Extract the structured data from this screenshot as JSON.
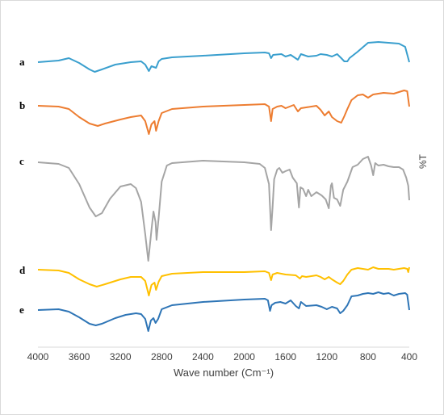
{
  "chart_data": {
    "type": "line",
    "title": "",
    "xlabel": "Wave number (Cm⁻¹)",
    "ylabel": "%T",
    "xlim": [
      4000,
      400
    ],
    "x_reversed": true,
    "x_ticks": [
      "4000",
      "3600",
      "3200",
      "2800",
      "2400",
      "2000",
      "1600",
      "1200",
      "800",
      "400"
    ],
    "y_ticks_shown": false,
    "grid": false,
    "legend": "none",
    "series": [
      {
        "label": "a",
        "color": "#3a9fce",
        "points": [
          [
            4000,
            77
          ],
          [
            3800,
            75
          ],
          [
            3700,
            72
          ],
          [
            3600,
            78
          ],
          [
            3500,
            86
          ],
          [
            3450,
            89
          ],
          [
            3380,
            86
          ],
          [
            3250,
            80
          ],
          [
            3100,
            77
          ],
          [
            3000,
            76
          ],
          [
            2960,
            80
          ],
          [
            2925,
            88
          ],
          [
            2900,
            82
          ],
          [
            2855,
            84
          ],
          [
            2830,
            76
          ],
          [
            2800,
            73
          ],
          [
            2700,
            71
          ],
          [
            2400,
            69
          ],
          [
            2000,
            66
          ],
          [
            1800,
            65
          ],
          [
            1760,
            66
          ],
          [
            1740,
            72
          ],
          [
            1720,
            68
          ],
          [
            1640,
            67
          ],
          [
            1600,
            70
          ],
          [
            1550,
            68
          ],
          [
            1480,
            74
          ],
          [
            1450,
            67
          ],
          [
            1380,
            70
          ],
          [
            1300,
            69
          ],
          [
            1260,
            67
          ],
          [
            1200,
            68
          ],
          [
            1150,
            70
          ],
          [
            1100,
            67
          ],
          [
            1060,
            72
          ],
          [
            1030,
            76
          ],
          [
            1000,
            76
          ],
          [
            980,
            72
          ],
          [
            900,
            64
          ],
          [
            800,
            53
          ],
          [
            700,
            52
          ],
          [
            600,
            53
          ],
          [
            500,
            54
          ],
          [
            440,
            58
          ],
          [
            400,
            77
          ]
        ]
      },
      {
        "label": "b",
        "color": "#ed7d31",
        "points": [
          [
            4000,
            131
          ],
          [
            3800,
            132
          ],
          [
            3700,
            135
          ],
          [
            3600,
            145
          ],
          [
            3500,
            153
          ],
          [
            3420,
            156
          ],
          [
            3350,
            153
          ],
          [
            3200,
            148
          ],
          [
            3100,
            145
          ],
          [
            3000,
            143
          ],
          [
            2960,
            150
          ],
          [
            2925,
            166
          ],
          [
            2900,
            154
          ],
          [
            2870,
            150
          ],
          [
            2855,
            162
          ],
          [
            2830,
            150
          ],
          [
            2800,
            140
          ],
          [
            2700,
            135
          ],
          [
            2400,
            132
          ],
          [
            2000,
            130
          ],
          [
            1800,
            129
          ],
          [
            1760,
            132
          ],
          [
            1740,
            150
          ],
          [
            1725,
            135
          ],
          [
            1680,
            132
          ],
          [
            1640,
            131
          ],
          [
            1600,
            134
          ],
          [
            1560,
            132
          ],
          [
            1520,
            130
          ],
          [
            1480,
            138
          ],
          [
            1450,
            134
          ],
          [
            1400,
            133
          ],
          [
            1300,
            131
          ],
          [
            1260,
            136
          ],
          [
            1220,
            143
          ],
          [
            1180,
            138
          ],
          [
            1150,
            145
          ],
          [
            1100,
            150
          ],
          [
            1060,
            152
          ],
          [
            1030,
            144
          ],
          [
            1000,
            135
          ],
          [
            960,
            124
          ],
          [
            900,
            118
          ],
          [
            850,
            117
          ],
          [
            800,
            121
          ],
          [
            750,
            117
          ],
          [
            650,
            115
          ],
          [
            550,
            116
          ],
          [
            450,
            112
          ],
          [
            420,
            113
          ],
          [
            400,
            132
          ]
        ]
      },
      {
        "label": "c",
        "color": "#a5a5a5",
        "points": [
          [
            4000,
            201
          ],
          [
            3800,
            203
          ],
          [
            3700,
            208
          ],
          [
            3600,
            228
          ],
          [
            3500,
            257
          ],
          [
            3440,
            268
          ],
          [
            3380,
            264
          ],
          [
            3300,
            246
          ],
          [
            3200,
            231
          ],
          [
            3100,
            228
          ],
          [
            3050,
            233
          ],
          [
            3000,
            250
          ],
          [
            2960,
            290
          ],
          [
            2930,
            323
          ],
          [
            2900,
            285
          ],
          [
            2880,
            262
          ],
          [
            2860,
            275
          ],
          [
            2850,
            297
          ],
          [
            2830,
            270
          ],
          [
            2800,
            225
          ],
          [
            2750,
            205
          ],
          [
            2700,
            202
          ],
          [
            2600,
            201
          ],
          [
            2400,
            199
          ],
          [
            2000,
            201
          ],
          [
            1850,
            203
          ],
          [
            1800,
            208
          ],
          [
            1760,
            228
          ],
          [
            1740,
            285
          ],
          [
            1725,
            256
          ],
          [
            1710,
            222
          ],
          [
            1680,
            210
          ],
          [
            1660,
            208
          ],
          [
            1630,
            214
          ],
          [
            1600,
            212
          ],
          [
            1560,
            210
          ],
          [
            1530,
            220
          ],
          [
            1490,
            227
          ],
          [
            1470,
            257
          ],
          [
            1455,
            232
          ],
          [
            1430,
            234
          ],
          [
            1400,
            243
          ],
          [
            1380,
            235
          ],
          [
            1350,
            243
          ],
          [
            1300,
            238
          ],
          [
            1250,
            242
          ],
          [
            1210,
            247
          ],
          [
            1180,
            258
          ],
          [
            1160,
            230
          ],
          [
            1150,
            227
          ],
          [
            1130,
            245
          ],
          [
            1100,
            247
          ],
          [
            1070,
            255
          ],
          [
            1040,
            235
          ],
          [
            1000,
            225
          ],
          [
            950,
            207
          ],
          [
            900,
            204
          ],
          [
            850,
            197
          ],
          [
            800,
            194
          ],
          [
            770,
            205
          ],
          [
            750,
            217
          ],
          [
            730,
            202
          ],
          [
            700,
            205
          ],
          [
            650,
            204
          ],
          [
            600,
            206
          ],
          [
            550,
            207
          ],
          [
            500,
            207
          ],
          [
            460,
            210
          ],
          [
            430,
            220
          ],
          [
            410,
            230
          ],
          [
            400,
            248
          ]
        ]
      },
      {
        "label": "d",
        "color": "#ffc000",
        "points": [
          [
            4000,
            334
          ],
          [
            3800,
            335
          ],
          [
            3700,
            338
          ],
          [
            3600,
            346
          ],
          [
            3500,
            352
          ],
          [
            3430,
            355
          ],
          [
            3350,
            352
          ],
          [
            3200,
            346
          ],
          [
            3100,
            343
          ],
          [
            3000,
            343
          ],
          [
            2960,
            348
          ],
          [
            2925,
            366
          ],
          [
            2900,
            353
          ],
          [
            2870,
            350
          ],
          [
            2855,
            359
          ],
          [
            2830,
            349
          ],
          [
            2800,
            342
          ],
          [
            2700,
            339
          ],
          [
            2400,
            337
          ],
          [
            2000,
            337
          ],
          [
            1800,
            336
          ],
          [
            1760,
            338
          ],
          [
            1740,
            347
          ],
          [
            1725,
            340
          ],
          [
            1680,
            338
          ],
          [
            1600,
            340
          ],
          [
            1500,
            341
          ],
          [
            1460,
            345
          ],
          [
            1440,
            342
          ],
          [
            1400,
            343
          ],
          [
            1300,
            341
          ],
          [
            1260,
            343
          ],
          [
            1220,
            346
          ],
          [
            1180,
            343
          ],
          [
            1150,
            346
          ],
          [
            1100,
            350
          ],
          [
            1070,
            352
          ],
          [
            1040,
            348
          ],
          [
            1000,
            340
          ],
          [
            960,
            334
          ],
          [
            900,
            332
          ],
          [
            850,
            333
          ],
          [
            800,
            334
          ],
          [
            750,
            331
          ],
          [
            700,
            333
          ],
          [
            650,
            333
          ],
          [
            600,
            333
          ],
          [
            550,
            334
          ],
          [
            500,
            333
          ],
          [
            450,
            332
          ],
          [
            420,
            333
          ],
          [
            410,
            337
          ],
          [
            400,
            331
          ]
        ]
      },
      {
        "label": "e",
        "color": "#2e75b6",
        "points": [
          [
            4000,
            384
          ],
          [
            3800,
            383
          ],
          [
            3700,
            386
          ],
          [
            3600,
            393
          ],
          [
            3500,
            401
          ],
          [
            3440,
            403
          ],
          [
            3380,
            401
          ],
          [
            3250,
            394
          ],
          [
            3150,
            390
          ],
          [
            3050,
            388
          ],
          [
            3000,
            389
          ],
          [
            2960,
            395
          ],
          [
            2930,
            410
          ],
          [
            2905,
            397
          ],
          [
            2880,
            394
          ],
          [
            2860,
            400
          ],
          [
            2835,
            395
          ],
          [
            2800,
            383
          ],
          [
            2700,
            378
          ],
          [
            2400,
            374
          ],
          [
            2000,
            371
          ],
          [
            1800,
            370
          ],
          [
            1770,
            372
          ],
          [
            1750,
            385
          ],
          [
            1735,
            378
          ],
          [
            1700,
            375
          ],
          [
            1650,
            374
          ],
          [
            1600,
            376
          ],
          [
            1550,
            372
          ],
          [
            1500,
            379
          ],
          [
            1470,
            382
          ],
          [
            1450,
            374
          ],
          [
            1400,
            379
          ],
          [
            1300,
            378
          ],
          [
            1250,
            380
          ],
          [
            1200,
            383
          ],
          [
            1150,
            380
          ],
          [
            1100,
            382
          ],
          [
            1070,
            388
          ],
          [
            1040,
            385
          ],
          [
            1000,
            378
          ],
          [
            960,
            367
          ],
          [
            900,
            366
          ],
          [
            850,
            364
          ],
          [
            800,
            363
          ],
          [
            750,
            364
          ],
          [
            700,
            362
          ],
          [
            650,
            364
          ],
          [
            600,
            363
          ],
          [
            550,
            366
          ],
          [
            500,
            364
          ],
          [
            440,
            363
          ],
          [
            420,
            365
          ],
          [
            400,
            384
          ]
        ]
      }
    ]
  }
}
